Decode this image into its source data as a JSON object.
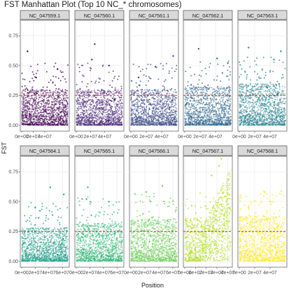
{
  "title": "FST Manhattan Plot (Top 10 NC_* chromosomes)",
  "chart_data": {
    "type": "scatter",
    "title": "FST Manhattan Plot (Top 10 NC_* chromosomes)",
    "xlabel": "Position",
    "ylabel": "FST",
    "ylim": [
      -0.05,
      0.88
    ],
    "yticks": [
      0.0,
      0.25,
      0.5,
      0.75
    ],
    "ytick_labels": [
      "0.00",
      "0.25",
      "0.50",
      "0.75"
    ],
    "threshold": 0.25,
    "threshold_color": "#cc3333",
    "grid": true,
    "facet_layout": "2 rows x 5 columns",
    "panels": [
      {
        "name": "NC_047559.1",
        "color": "#440154",
        "xmax": 80000000.0,
        "xticks": [
          0,
          20000000.0,
          40000000.0
        ],
        "xtick_labels": [
          "0e+00",
          "2e+07",
          "4e+07"
        ],
        "body": 0.22,
        "peaks": [
          [
            10000000.0,
            0.62
          ],
          [
            62000000.0,
            0.47
          ],
          [
            25000000.0,
            0.4
          ]
        ]
      },
      {
        "name": "NC_047560.1",
        "color": "#482878",
        "xmax": 65000000.0,
        "xticks": [
          0,
          20000000.0,
          40000000.0
        ],
        "xtick_labels": [
          "0e+00",
          "2e+07",
          "4e+07"
        ],
        "body": 0.22,
        "peaks": [
          [
            26000000.0,
            0.68
          ],
          [
            22000000.0,
            0.55
          ],
          [
            46000000.0,
            0.5
          ]
        ]
      },
      {
        "name": "NC_047561.1",
        "color": "#3e4a89",
        "xmax": 60000000.0,
        "xticks": [
          0,
          20000000.0,
          40000000.0
        ],
        "xtick_labels": [
          "0e+00",
          "2e+07",
          "4e+07"
        ],
        "body": 0.22,
        "peaks": [
          [
            55000000.0,
            0.58
          ],
          [
            32000000.0,
            0.49
          ],
          [
            10000000.0,
            0.4
          ]
        ]
      },
      {
        "name": "NC_047562.1",
        "color": "#31688e",
        "xmax": 60000000.0,
        "xticks": [
          0,
          20000000.0,
          40000000.0
        ],
        "xtick_labels": [
          "0e+00",
          "2e+07",
          "4e+07"
        ],
        "body": 0.24,
        "peaks": [
          [
            18000000.0,
            0.64
          ],
          [
            42000000.0,
            0.56
          ],
          [
            56000000.0,
            0.52
          ]
        ]
      },
      {
        "name": "NC_047563.1",
        "color": "#26828e",
        "xmax": 60000000.0,
        "xticks": [
          0,
          20000000.0,
          40000000.0
        ],
        "xtick_labels": [
          "0e+00",
          "2e+07",
          "4e+07"
        ],
        "body": 0.27,
        "peaks": [
          [
            12000000.0,
            0.65
          ],
          [
            45000000.0,
            0.55
          ],
          [
            54000000.0,
            0.62
          ]
        ]
      },
      {
        "name": "NC_047564.1",
        "color": "#1f9e89",
        "xmax": 68000000.0,
        "xticks": [
          0,
          20000000.0,
          40000000.0,
          60000000.0
        ],
        "xtick_labels": [
          "0e+00",
          "2e+07",
          "4e+07",
          "6e+07"
        ],
        "body": 0.2,
        "peaks": [
          [
            42000000.0,
            0.62
          ],
          [
            62000000.0,
            0.56
          ],
          [
            20000000.0,
            0.45
          ]
        ]
      },
      {
        "name": "NC_047565.1",
        "color": "#35b779",
        "xmax": 68000000.0,
        "xticks": [
          0,
          20000000.0,
          40000000.0,
          60000000.0
        ],
        "xtick_labels": [
          "0e+00",
          "2e+07",
          "4e+07",
          "6e+07"
        ],
        "body": 0.24,
        "peaks": [
          [
            15000000.0,
            0.52
          ],
          [
            17000000.0,
            0.62
          ],
          [
            48000000.0,
            0.5
          ]
        ]
      },
      {
        "name": "NC_047566.1",
        "color": "#6ece58",
        "xmax": 66000000.0,
        "xticks": [
          0,
          20000000.0,
          40000000.0,
          60000000.0
        ],
        "xtick_labels": [
          "0e+00",
          "2e+07",
          "4e+07",
          "6e+07"
        ],
        "body": 0.27,
        "peaks": [
          [
            22000000.0,
            0.58
          ],
          [
            45000000.0,
            0.63
          ],
          [
            28000000.0,
            0.5
          ]
        ]
      },
      {
        "name": "NC_047567.1",
        "color": "#b5de2b",
        "xmax": 43000000.0,
        "xticks": [
          0,
          10000000.0,
          20000000.0,
          30000000.0,
          40000000.0
        ],
        "xtick_labels": [
          "0e+00",
          "1e+07",
          "2e+07",
          "3e+07",
          "4e+07"
        ],
        "body": 0.28,
        "peaks": [
          [
            34000000.0,
            0.86
          ],
          [
            32000000.0,
            0.8
          ],
          [
            25000000.0,
            0.72
          ]
        ]
      },
      {
        "name": "NC_047568.1",
        "color": "#fde725",
        "xmax": 60000000.0,
        "xticks": [
          0,
          20000000.0,
          40000000.0
        ],
        "xtick_labels": [
          "0e+00",
          "2e+07",
          "4e+07"
        ],
        "body": 0.3,
        "peaks": [
          [
            33000000.0,
            0.58
          ],
          [
            40000000.0,
            0.5
          ],
          [
            12000000.0,
            0.45
          ]
        ]
      }
    ]
  }
}
